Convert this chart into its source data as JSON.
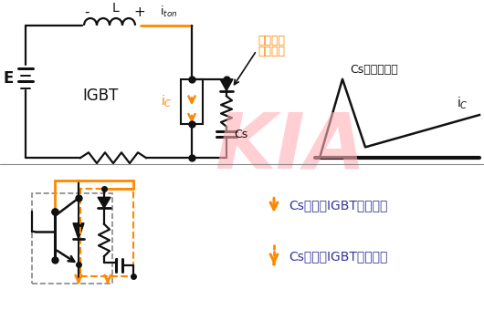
{
  "bg": "#ffffff",
  "orange": "#FF8800",
  "black": "#111111",
  "kia_pink": "#FFB0B8",
  "gray": "#888888",
  "purple": "#333399",
  "label_E": "E",
  "label_L": "L",
  "label_IGBT": "IGBT",
  "label_Cs": "Cs",
  "label_discharge1": "放電電流",
  "label_discharge2": "限制電陀",
  "label_Cs_wave": "Cs的放電電流",
  "label_KIA": "KIA",
  "label_Cs_charge": "Cs充電（IGBT關斷）時",
  "label_Cs_discharge": "Cs放電（IGBT開通）時"
}
